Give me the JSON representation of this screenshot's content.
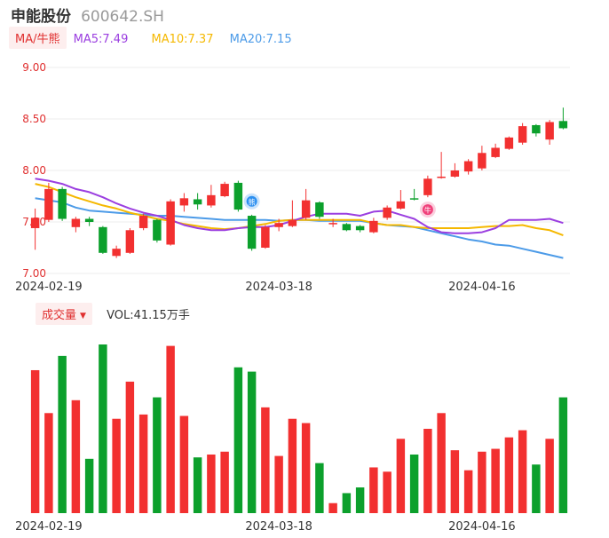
{
  "header": {
    "name": "申能股份",
    "code": "600642.SH"
  },
  "indicator_tag": "MA/牛熊",
  "ma_legend": [
    {
      "label": "MA5:7.49",
      "color": "#9b3fe0"
    },
    {
      "label": "MA10:7.37",
      "color": "#f5b800"
    },
    {
      "label": "MA20:7.15",
      "color": "#4c9be8"
    }
  ],
  "volume_tag": "成交量",
  "volume_text": "VOL:41.15万手",
  "colors": {
    "up": "#f23030",
    "down": "#0ca02c",
    "axis": "#e03030"
  },
  "chart_data": {
    "type": "candlestick",
    "ylim": [
      7.0,
      9.0
    ],
    "yticks": [
      "9.00",
      "8.50",
      "8.00",
      "7.50",
      "7.00"
    ],
    "xticks": [
      {
        "index": 1,
        "label": "2024-02-19"
      },
      {
        "index": 18,
        "label": "2024-03-18"
      },
      {
        "index": 33,
        "label": "2024-04-16"
      }
    ],
    "candles": [
      {
        "o": 7.44,
        "c": 7.54,
        "h": 7.63,
        "l": 7.23
      },
      {
        "o": 7.52,
        "c": 7.82,
        "h": 7.88,
        "l": 7.5
      },
      {
        "o": 7.82,
        "c": 7.53,
        "h": 7.84,
        "l": 7.51
      },
      {
        "o": 7.45,
        "c": 7.53,
        "h": 7.55,
        "l": 7.4
      },
      {
        "o": 7.53,
        "c": 7.5,
        "h": 7.55,
        "l": 7.46
      },
      {
        "o": 7.45,
        "c": 7.2,
        "h": 7.46,
        "l": 7.19
      },
      {
        "o": 7.17,
        "c": 7.24,
        "h": 7.27,
        "l": 7.15
      },
      {
        "o": 7.2,
        "c": 7.42,
        "h": 7.44,
        "l": 7.19
      },
      {
        "o": 7.44,
        "c": 7.56,
        "h": 7.58,
        "l": 7.42
      },
      {
        "o": 7.52,
        "c": 7.32,
        "h": 7.53,
        "l": 7.3
      },
      {
        "o": 7.28,
        "c": 7.7,
        "h": 7.72,
        "l": 7.27
      },
      {
        "o": 7.66,
        "c": 7.73,
        "h": 7.78,
        "l": 7.6
      },
      {
        "o": 7.72,
        "c": 7.67,
        "h": 7.78,
        "l": 7.62
      },
      {
        "o": 7.66,
        "c": 7.76,
        "h": 7.86,
        "l": 7.64
      },
      {
        "o": 7.75,
        "c": 7.87,
        "h": 7.89,
        "l": 7.74
      },
      {
        "o": 7.88,
        "c": 7.62,
        "h": 7.9,
        "l": 7.6
      },
      {
        "o": 7.56,
        "c": 7.24,
        "h": 7.57,
        "l": 7.22
      },
      {
        "o": 7.25,
        "c": 7.45,
        "h": 7.47,
        "l": 7.24
      },
      {
        "o": 7.45,
        "c": 7.49,
        "h": 7.53,
        "l": 7.41
      },
      {
        "o": 7.46,
        "c": 7.52,
        "h": 7.71,
        "l": 7.45
      },
      {
        "o": 7.54,
        "c": 7.71,
        "h": 7.82,
        "l": 7.52
      },
      {
        "o": 7.69,
        "c": 7.55,
        "h": 7.7,
        "l": 7.53
      },
      {
        "o": 7.49,
        "c": 7.49,
        "h": 7.53,
        "l": 7.45
      },
      {
        "o": 7.48,
        "c": 7.42,
        "h": 7.49,
        "l": 7.41
      },
      {
        "o": 7.46,
        "c": 7.42,
        "h": 7.47,
        "l": 7.4
      },
      {
        "o": 7.4,
        "c": 7.51,
        "h": 7.54,
        "l": 7.39
      },
      {
        "o": 7.54,
        "c": 7.64,
        "h": 7.66,
        "l": 7.52
      },
      {
        "o": 7.63,
        "c": 7.7,
        "h": 7.81,
        "l": 7.62
      },
      {
        "o": 7.73,
        "c": 7.72,
        "h": 7.82,
        "l": 7.71
      },
      {
        "o": 7.76,
        "c": 7.92,
        "h": 7.95,
        "l": 7.74
      },
      {
        "o": 7.93,
        "c": 7.94,
        "h": 8.18,
        "l": 7.92
      },
      {
        "o": 7.94,
        "c": 8.0,
        "h": 8.07,
        "l": 7.93
      },
      {
        "o": 7.99,
        "c": 8.09,
        "h": 8.11,
        "l": 7.96
      },
      {
        "o": 8.02,
        "c": 8.17,
        "h": 8.24,
        "l": 8.0
      },
      {
        "o": 8.13,
        "c": 8.22,
        "h": 8.26,
        "l": 8.12
      },
      {
        "o": 8.21,
        "c": 8.32,
        "h": 8.33,
        "l": 8.2
      },
      {
        "o": 8.27,
        "c": 8.43,
        "h": 8.46,
        "l": 8.25
      },
      {
        "o": 8.44,
        "c": 8.36,
        "h": 8.45,
        "l": 8.33
      },
      {
        "o": 8.3,
        "c": 8.47,
        "h": 8.49,
        "l": 8.25
      },
      {
        "o": 8.48,
        "c": 8.41,
        "h": 8.61,
        "l": 8.4
      }
    ],
    "ma5": [
      7.92,
      7.9,
      7.87,
      7.82,
      7.79,
      7.74,
      7.68,
      7.63,
      7.59,
      7.56,
      7.52,
      7.47,
      7.44,
      7.42,
      7.42,
      7.44,
      7.45,
      7.45,
      7.47,
      7.51,
      7.55,
      7.58,
      7.58,
      7.58,
      7.56,
      7.6,
      7.61,
      7.57,
      7.53,
      7.45,
      7.4,
      7.39,
      7.39,
      7.4,
      7.44,
      7.52,
      7.52,
      7.52,
      7.53,
      7.49
    ],
    "ma10": [
      7.87,
      7.84,
      7.79,
      7.74,
      7.7,
      7.66,
      7.63,
      7.59,
      7.56,
      7.53,
      7.51,
      7.48,
      7.46,
      7.44,
      7.43,
      7.44,
      7.46,
      7.48,
      7.51,
      7.52,
      7.52,
      7.52,
      7.52,
      7.52,
      7.52,
      7.49,
      7.47,
      7.47,
      7.45,
      7.44,
      7.44,
      7.44,
      7.44,
      7.45,
      7.46,
      7.46,
      7.47,
      7.44,
      7.42,
      7.37
    ],
    "ma20": [
      7.73,
      7.71,
      7.69,
      7.64,
      7.61,
      7.6,
      7.59,
      7.58,
      7.57,
      7.56,
      7.56,
      7.55,
      7.54,
      7.53,
      7.52,
      7.52,
      7.52,
      7.52,
      7.51,
      7.52,
      7.52,
      7.51,
      7.51,
      7.51,
      7.51,
      7.49,
      7.47,
      7.46,
      7.45,
      7.42,
      7.39,
      7.36,
      7.33,
      7.31,
      7.28,
      7.27,
      7.24,
      7.21,
      7.18,
      7.15
    ],
    "volume": [
      100,
      70,
      110,
      79,
      38,
      118,
      66,
      92,
      69,
      81,
      117,
      68,
      39,
      41,
      43,
      102,
      99,
      74,
      40,
      66,
      63,
      35,
      7,
      14,
      18,
      32,
      29,
      52,
      41,
      59,
      70,
      44,
      30,
      43,
      45,
      53,
      58,
      34,
      52,
      81
    ],
    "markers": [
      {
        "index": 16,
        "label": "熊",
        "color": "#2b8ff0"
      },
      {
        "index": 29,
        "label": "牛",
        "color": "#f0407a"
      }
    ]
  }
}
